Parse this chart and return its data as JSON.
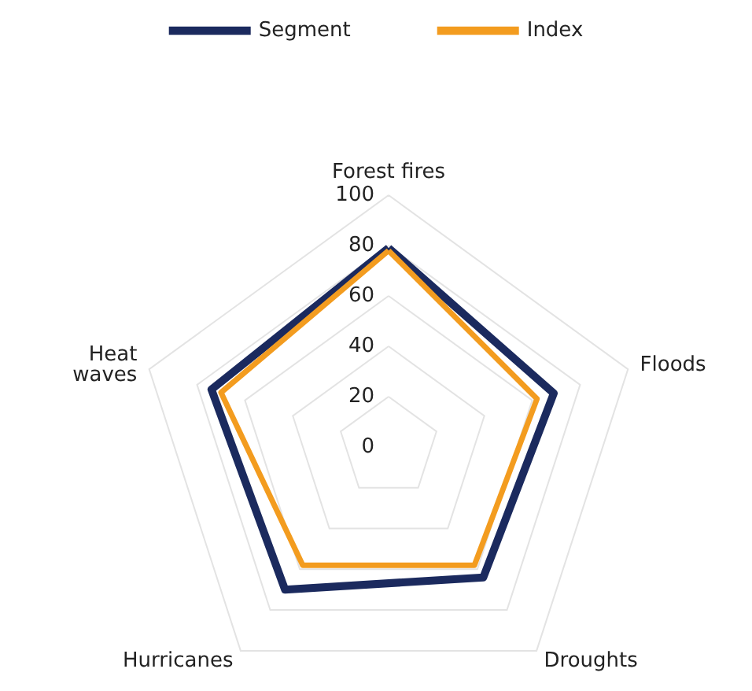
{
  "chart_data": {
    "type": "radar",
    "categories": [
      "Forest fires",
      "Floods",
      "Droughts",
      "Hurricanes",
      "Heat\nwaves"
    ],
    "series": [
      {
        "name": "Segment",
        "color": "#1b2a5e",
        "values": [
          79,
          69,
          64,
          70,
          74
        ]
      },
      {
        "name": "Index",
        "color": "#f39c1f",
        "values": [
          78,
          62,
          58,
          58,
          70
        ]
      }
    ],
    "ylim": [
      0,
      100
    ],
    "yticks": [
      0,
      20,
      40,
      60,
      80,
      100
    ],
    "legend": "top",
    "grid": true,
    "marker": "none"
  }
}
